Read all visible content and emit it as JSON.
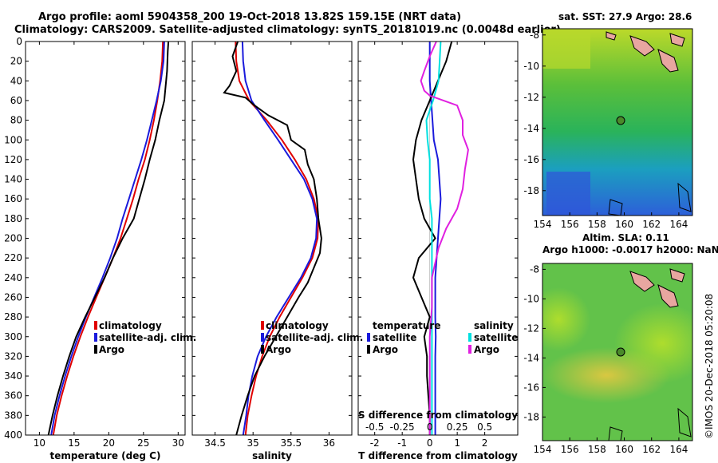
{
  "title": {
    "line1": "Argo profile: aoml 5904358_200 19-Oct-2018 13.82S 159.15E (NRT data)",
    "line2": "Climatology: CARS2009. Satellite-adjusted climatology: synTS_20181019.nc (0.0048d earlier)"
  },
  "colors": {
    "climatology": "#e00000",
    "satellite": "#1a1adc",
    "argo": "#000000",
    "sal_sat": "#00e0e0",
    "sal_argo": "#e020e0"
  },
  "depth_ticks": [
    0,
    20,
    40,
    60,
    80,
    100,
    120,
    140,
    160,
    180,
    200,
    220,
    240,
    260,
    280,
    300,
    320,
    340,
    360,
    380,
    400
  ],
  "legend_profiles": {
    "climatology": "climatology",
    "satellite": "satellite-adj. clim.",
    "argo": "Argo"
  },
  "legend_diff": {
    "temperature_title": "temperature",
    "salinity_title": "salinity",
    "t_satellite": "satellite",
    "t_argo": "Argo",
    "s_satellite": "satellite",
    "s_argo": "Argo"
  },
  "map_sst": {
    "title": "sat. SST: 27.9 Argo: 28.6",
    "xticks": [
      154,
      156,
      158,
      160,
      162,
      164
    ],
    "yticks": [
      -8,
      -10,
      -12,
      -14,
      -16,
      -18
    ]
  },
  "map_sla": {
    "title1": "Altim. SLA: 0.11",
    "title2": "Argo h1000: -0.0017 h2000: NaN",
    "xticks": [
      154,
      156,
      158,
      160,
      162,
      164
    ],
    "yticks": [
      -8,
      -10,
      -12,
      -14,
      -16,
      -18
    ]
  },
  "credit": "©IMOS 20-Dec-2018 05:20:08",
  "chart_data": [
    {
      "type": "line",
      "xlabel": "temperature (deg C)",
      "ylabel": "",
      "xlim": [
        8,
        31
      ],
      "ylim": [
        400,
        0
      ],
      "xticks": [
        10,
        15,
        20,
        25,
        30
      ],
      "series": [
        {
          "name": "climatology",
          "color": "#e00000",
          "x": [
            27.8,
            27.7,
            27.4,
            27.0,
            26.5,
            25.9,
            25.2,
            24.3,
            23.5,
            22.6,
            21.7,
            20.6,
            19.4,
            18.2,
            17.0,
            15.9,
            14.9,
            14.0,
            13.2,
            12.5,
            12.0
          ],
          "y": [
            0,
            20,
            40,
            60,
            80,
            100,
            120,
            140,
            160,
            180,
            200,
            220,
            240,
            260,
            280,
            300,
            320,
            340,
            360,
            380,
            400
          ]
        },
        {
          "name": "satellite-adj. clim.",
          "color": "#1a1adc",
          "x": [
            28.0,
            27.9,
            27.5,
            26.9,
            26.2,
            25.5,
            24.7,
            23.8,
            22.9,
            22.0,
            21.2,
            20.2,
            19.1,
            17.9,
            16.7,
            15.6,
            14.6,
            13.7,
            12.9,
            12.2,
            11.7
          ],
          "y": [
            0,
            20,
            40,
            60,
            80,
            100,
            120,
            140,
            160,
            180,
            200,
            220,
            240,
            260,
            280,
            300,
            320,
            340,
            360,
            380,
            400
          ]
        },
        {
          "name": "Argo",
          "color": "#000000",
          "x": [
            28.6,
            28.5,
            28.4,
            28.0,
            27.3,
            26.7,
            25.9,
            25.2,
            24.4,
            23.6,
            22.0,
            20.6,
            19.4,
            18.0,
            16.6,
            15.3,
            14.3,
            13.4,
            12.6,
            11.9,
            11.3
          ],
          "y": [
            0,
            10,
            30,
            60,
            80,
            100,
            120,
            140,
            160,
            180,
            200,
            220,
            240,
            260,
            280,
            300,
            320,
            340,
            360,
            380,
            400
          ]
        }
      ]
    },
    {
      "type": "line",
      "xlabel": "salinity",
      "ylabel": "",
      "xlim": [
        34.2,
        36.3
      ],
      "ylim": [
        400,
        0
      ],
      "xticks": [
        34.5,
        35,
        35.5,
        36
      ],
      "series": [
        {
          "name": "climatology",
          "color": "#e00000",
          "x": [
            34.77,
            34.78,
            34.82,
            34.95,
            35.18,
            35.38,
            35.55,
            35.7,
            35.8,
            35.86,
            35.85,
            35.78,
            35.65,
            35.5,
            35.35,
            35.22,
            35.12,
            35.04,
            34.98,
            34.93,
            34.9
          ],
          "y": [
            0,
            20,
            40,
            60,
            80,
            100,
            120,
            140,
            160,
            180,
            200,
            220,
            240,
            260,
            280,
            300,
            320,
            340,
            360,
            380,
            400
          ]
        },
        {
          "name": "satellite-adj. clim.",
          "color": "#1a1adc",
          "x": [
            34.86,
            34.87,
            34.9,
            34.98,
            35.15,
            35.33,
            35.5,
            35.67,
            35.78,
            35.84,
            35.83,
            35.76,
            35.63,
            35.47,
            35.31,
            35.17,
            35.06,
            34.99,
            34.94,
            34.91,
            34.87
          ],
          "y": [
            0,
            20,
            40,
            60,
            80,
            100,
            120,
            140,
            160,
            180,
            200,
            220,
            240,
            260,
            280,
            300,
            320,
            340,
            360,
            380,
            400
          ]
        },
        {
          "name": "Argo",
          "color": "#000000",
          "x": [
            34.8,
            34.73,
            34.78,
            34.69,
            34.62,
            34.9,
            35.02,
            35.2,
            35.45,
            35.5,
            35.68,
            35.72,
            35.8,
            35.84,
            35.86,
            35.9,
            35.88,
            35.8,
            35.72,
            35.6,
            35.45,
            35.3,
            35.15,
            35.02,
            34.93,
            34.85,
            34.78
          ],
          "y": [
            0,
            15,
            30,
            45,
            52,
            57,
            65,
            75,
            85,
            100,
            110,
            125,
            140,
            160,
            180,
            200,
            215,
            230,
            245,
            260,
            280,
            300,
            320,
            340,
            360,
            380,
            400
          ]
        }
      ]
    },
    {
      "type": "line",
      "xlabel": "T difference from climatology",
      "x2label": "S difference from climatology",
      "ylabel": "",
      "xlim": [
        -2.6,
        3.2
      ],
      "x2lim": [
        -0.65,
        0.8
      ],
      "ylim": [
        400,
        0
      ],
      "xticks": [
        -2,
        -1,
        0,
        1,
        2
      ],
      "x2ticks": [
        -0.5,
        -0.25,
        0,
        0.25,
        0.5
      ],
      "series": [
        {
          "name": "temperature satellite",
          "axis": "T",
          "color": "#1a1adc",
          "x": [
            0.0,
            0.0,
            0.0,
            0.05,
            0.1,
            0.15,
            0.3,
            0.35,
            0.4,
            0.35,
            0.3,
            0.25,
            0.2,
            0.2,
            0.2,
            0.22,
            0.2,
            0.2,
            0.2,
            0.2,
            0.2
          ],
          "y": [
            0,
            20,
            40,
            60,
            80,
            100,
            120,
            140,
            160,
            180,
            200,
            220,
            240,
            260,
            280,
            300,
            320,
            340,
            360,
            380,
            400
          ]
        },
        {
          "name": "temperature Argo",
          "axis": "T",
          "color": "#000000",
          "x": [
            0.8,
            0.6,
            0.3,
            0.0,
            -0.3,
            -0.5,
            -0.6,
            -0.5,
            -0.4,
            -0.2,
            0.2,
            -0.4,
            -0.6,
            -0.3,
            0.0,
            -0.2,
            -0.1,
            -0.1,
            -0.05,
            0.0,
            0.0
          ],
          "y": [
            0,
            20,
            40,
            60,
            80,
            100,
            120,
            140,
            160,
            180,
            200,
            220,
            240,
            260,
            280,
            300,
            320,
            340,
            360,
            380,
            400
          ]
        },
        {
          "name": "salinity satellite",
          "axis": "S",
          "color": "#00e0e0",
          "x": [
            0.1,
            0.09,
            0.08,
            0.03,
            -0.03,
            -0.02,
            0.0,
            0.0,
            0.0,
            0.02,
            0.02,
            0.02,
            0.02,
            0.02,
            0.02,
            0.02,
            0.02,
            0.02,
            0.02,
            0.02,
            0.02
          ],
          "y": [
            0,
            20,
            40,
            60,
            80,
            100,
            120,
            140,
            160,
            180,
            200,
            220,
            240,
            260,
            280,
            300,
            320,
            340,
            360,
            380,
            400
          ]
        },
        {
          "name": "salinity Argo",
          "axis": "S",
          "color": "#e020e0",
          "x": [
            0.06,
            0.0,
            -0.05,
            -0.08,
            -0.05,
            0.0,
            0.25,
            0.3,
            0.3,
            0.35,
            0.32,
            0.3,
            0.25,
            0.15,
            0.08,
            0.02,
            0.02,
            0.0,
            0.0,
            0.0,
            0.0
          ],
          "y": [
            0,
            15,
            30,
            40,
            50,
            55,
            65,
            80,
            95,
            110,
            130,
            150,
            170,
            190,
            210,
            240,
            270,
            300,
            330,
            370,
            400
          ]
        }
      ]
    }
  ]
}
